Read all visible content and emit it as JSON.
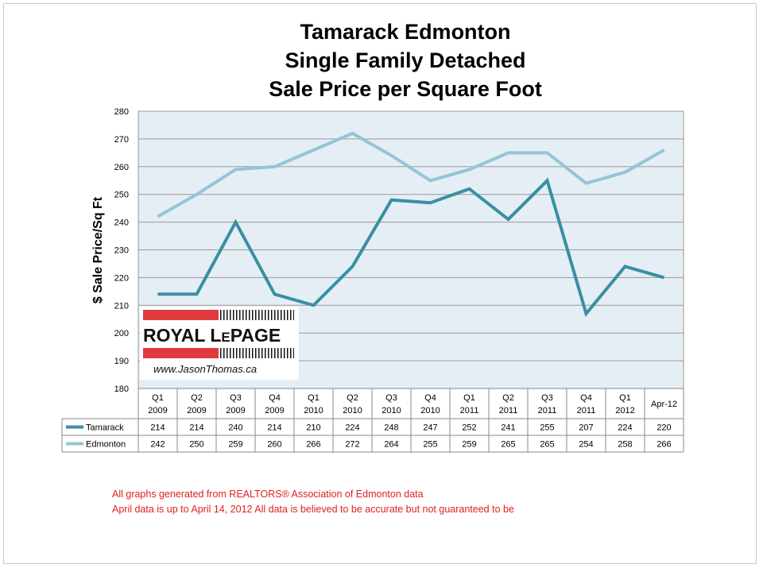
{
  "chart_data": {
    "type": "line",
    "title": [
      "Tamarack Edmonton",
      "Single Family Detached",
      "Sale Price per Square Foot"
    ],
    "ylabel": "$ Sale Price/Sq Ft",
    "xlabel": "",
    "ylim": [
      180,
      280
    ],
    "yticks": [
      "180",
      "190",
      "200",
      "210",
      "220",
      "230",
      "240",
      "250",
      "260",
      "270",
      "280"
    ],
    "categories": [
      [
        "Q1",
        "2009"
      ],
      [
        "Q2",
        "2009"
      ],
      [
        "Q3",
        "2009"
      ],
      [
        "Q4",
        "2009"
      ],
      [
        "Q1",
        "2010"
      ],
      [
        "Q2",
        "2010"
      ],
      [
        "Q3",
        "2010"
      ],
      [
        "Q4",
        "2010"
      ],
      [
        "Q1",
        "2011"
      ],
      [
        "Q2",
        "2011"
      ],
      [
        "Q3",
        "2011"
      ],
      [
        "Q4",
        "2011"
      ],
      [
        "Q1",
        "2012"
      ],
      [
        "Apr-12"
      ]
    ],
    "series": [
      {
        "name": "Tamarack",
        "color": "#3a8fa3",
        "values": [
          214,
          214,
          240,
          214,
          210,
          224,
          248,
          247,
          252,
          241,
          255,
          207,
          224,
          220
        ]
      },
      {
        "name": "Edmonton",
        "color": "#94c5d8",
        "values": [
          242,
          250,
          259,
          260,
          266,
          272,
          264,
          255,
          259,
          265,
          265,
          254,
          258,
          266
        ]
      }
    ],
    "grid": true,
    "legend": "data-table"
  },
  "logo": {
    "brand_big1": "ROYAL L",
    "brand_small1": "E",
    "brand_big2": "PAGE",
    "url": "www.JasonThomas.ca"
  },
  "notes": [
    "All graphs generated from REALTORS® Association of Edmonton  data",
    "April data is up to April 14, 2012 All data is believed to be accurate but not guaranteed to be"
  ]
}
